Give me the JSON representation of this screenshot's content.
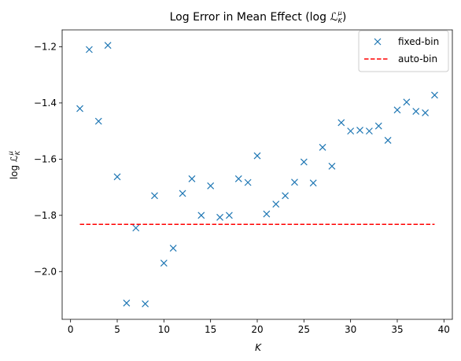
{
  "chart_data": {
    "type": "scatter",
    "title_main": "Log Error in Mean Effect (log ",
    "title_math": "ℒ",
    "title_sup": "μ",
    "title_sub": "K",
    "title_close": ")",
    "xlabel": "K",
    "ylabel_prefix": "log ",
    "ylabel_math": "ℒ",
    "ylabel_sup": "μ",
    "ylabel_sub": "K",
    "xlim": [
      -0.9,
      40.9
    ],
    "ylim": [
      -2.17,
      -1.14
    ],
    "xticks": [
      0,
      5,
      10,
      15,
      20,
      25,
      30,
      35,
      40
    ],
    "xtick_labels": [
      "0",
      "5",
      "10",
      "15",
      "20",
      "25",
      "30",
      "35",
      "40"
    ],
    "yticks": [
      -2.0,
      -1.8,
      -1.6,
      -1.4,
      -1.2
    ],
    "ytick_labels": [
      "−2.0",
      "−1.8",
      "−1.6",
      "−1.4",
      "−1.2"
    ],
    "grid": false,
    "legend_position": "top-right",
    "series": [
      {
        "name": "fixed-bin",
        "kind": "marker-x",
        "color": "#1f77b4",
        "x": [
          1,
          2,
          3,
          4,
          5,
          6,
          7,
          8,
          9,
          10,
          11,
          12,
          13,
          14,
          15,
          16,
          17,
          18,
          19,
          20,
          21,
          22,
          23,
          24,
          25,
          26,
          27,
          28,
          29,
          30,
          31,
          32,
          33,
          34,
          35,
          36,
          37,
          38,
          39
        ],
        "y": [
          -1.42,
          -1.21,
          -1.465,
          -1.195,
          -1.663,
          -2.112,
          -1.845,
          -2.115,
          -1.73,
          -1.97,
          -1.917,
          -1.722,
          -1.67,
          -1.8,
          -1.695,
          -1.807,
          -1.8,
          -1.67,
          -1.683,
          -1.588,
          -1.795,
          -1.76,
          -1.73,
          -1.682,
          -1.61,
          -1.685,
          -1.558,
          -1.625,
          -1.47,
          -1.5,
          -1.497,
          -1.5,
          -1.482,
          -1.533,
          -1.425,
          -1.397,
          -1.43,
          -1.435,
          -1.372
        ]
      },
      {
        "name": "auto-bin",
        "kind": "dashed-line",
        "color": "#ff0000",
        "x": [
          1,
          39
        ],
        "y": [
          -1.832,
          -1.832
        ]
      }
    ]
  }
}
